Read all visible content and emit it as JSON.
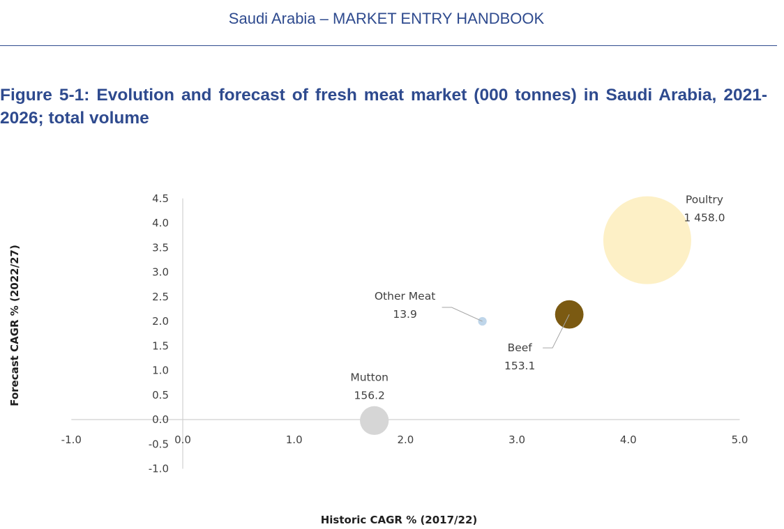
{
  "header": {
    "title": "Saudi Arabia – MARKET ENTRY HANDBOOK"
  },
  "figure": {
    "caption": "Figure 5-1: Evolution and forecast of fresh meat market (000 tonnes) in Saudi Arabia, 2021-2026; total volume"
  },
  "chart_data": {
    "type": "scatter",
    "subtype": "bubble",
    "xlabel": "Historic CAGR % (2017/22)",
    "ylabel": "Forecast CAGR % (2022/27)",
    "xlim": [
      -1.0,
      5.0
    ],
    "ylim": [
      -1.0,
      4.5
    ],
    "x_ticks": [
      "-1.0",
      "0.0",
      "1.0",
      "2.0",
      "3.0",
      "4.0",
      "5.0"
    ],
    "y_ticks": [
      "4.5",
      "4.0",
      "3.5",
      "3.0",
      "2.5",
      "2.0",
      "1.5",
      "1.0",
      "0.5",
      "0.0",
      "-0.5",
      "-1.0"
    ],
    "grid": false,
    "legend": "none",
    "series": [
      {
        "name": "Poultry",
        "x": 4.17,
        "y": 3.65,
        "size": 1458.0,
        "value_label": "1 458.0",
        "color": "#fdf0c6"
      },
      {
        "name": "Beef",
        "x": 3.47,
        "y": 2.14,
        "size": 153.1,
        "value_label": "153.1",
        "color": "#7b5a12"
      },
      {
        "name": "Other Meat",
        "x": 2.69,
        "y": 2.0,
        "size": 13.9,
        "value_label": "13.9",
        "color": "#bfd6ea"
      },
      {
        "name": "Mutton",
        "x": 1.72,
        "y": -0.02,
        "size": 156.2,
        "value_label": "156.2",
        "color": "#d6d6d6"
      }
    ]
  }
}
